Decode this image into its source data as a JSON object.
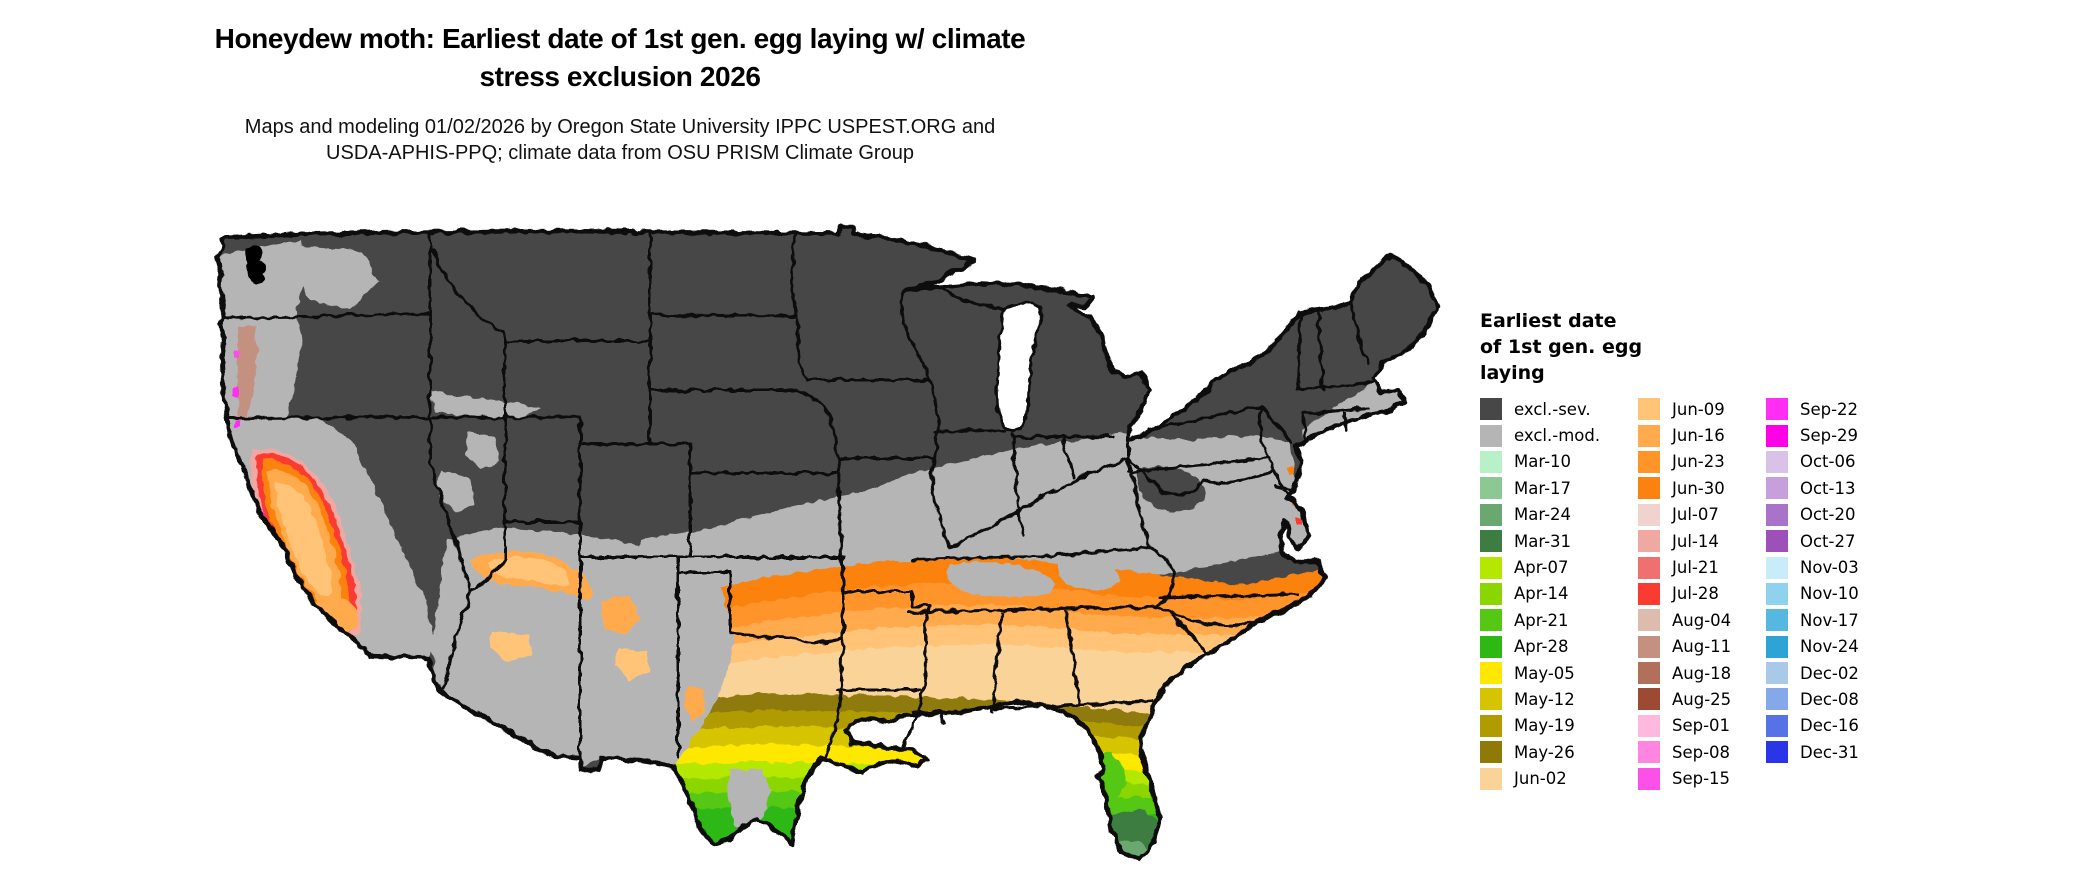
{
  "title": {
    "line1": "Honeydew moth: Earliest date of 1st gen. egg laying w/ climate",
    "line2": "stress exclusion 2026"
  },
  "subtitle": {
    "line1": "Maps and modeling 01/02/2026 by Oregon State University IPPC USPEST.ORG and",
    "line2": "USDA-APHIS-PPQ; climate data from OSU PRISM Climate Group"
  },
  "legend": {
    "title_lines": [
      "Earliest date",
      "of 1st gen. egg",
      "laying"
    ],
    "columns": [
      [
        {
          "label": "excl.-sev.",
          "color": "#474747"
        },
        {
          "label": "excl.-mod.",
          "color": "#b5b5b5"
        },
        {
          "label": "Mar-10",
          "color": "#b8f0c8"
        },
        {
          "label": "Mar-17",
          "color": "#8cc894"
        },
        {
          "label": "Mar-24",
          "color": "#6aa870"
        },
        {
          "label": "Mar-31",
          "color": "#3d7d42"
        },
        {
          "label": "Apr-07",
          "color": "#b5e800"
        },
        {
          "label": "Apr-14",
          "color": "#8cd600"
        },
        {
          "label": "Apr-21",
          "color": "#55c814"
        },
        {
          "label": "Apr-28",
          "color": "#2eb814"
        },
        {
          "label": "May-05",
          "color": "#ffe800"
        },
        {
          "label": "May-12",
          "color": "#d6c400"
        },
        {
          "label": "May-19",
          "color": "#b09c00"
        },
        {
          "label": "May-26",
          "color": "#8f7a08"
        },
        {
          "label": "Jun-02",
          "color": "#fad398"
        }
      ],
      [
        {
          "label": "Jun-09",
          "color": "#ffc478"
        },
        {
          "label": "Jun-16",
          "color": "#ffab4d"
        },
        {
          "label": "Jun-23",
          "color": "#ff9429"
        },
        {
          "label": "Jun-30",
          "color": "#fb8211"
        },
        {
          "label": "Jul-07",
          "color": "#f0d3cf"
        },
        {
          "label": "Jul-14",
          "color": "#f0a8a2"
        },
        {
          "label": "Jul-21",
          "color": "#f07070"
        },
        {
          "label": "Jul-28",
          "color": "#f93b31"
        },
        {
          "label": "Aug-04",
          "color": "#ddbcae"
        },
        {
          "label": "Aug-11",
          "color": "#c4907f"
        },
        {
          "label": "Aug-18",
          "color": "#b0705c"
        },
        {
          "label": "Aug-25",
          "color": "#9c4a33"
        },
        {
          "label": "Sep-01",
          "color": "#ffb8de"
        },
        {
          "label": "Sep-08",
          "color": "#ff85e0"
        },
        {
          "label": "Sep-15",
          "color": "#fc50e8"
        }
      ],
      [
        {
          "label": "Sep-22",
          "color": "#ff2ef5"
        },
        {
          "label": "Sep-29",
          "color": "#ff00e6"
        },
        {
          "label": "Oct-06",
          "color": "#d9c2e8"
        },
        {
          "label": "Oct-13",
          "color": "#c79fdc"
        },
        {
          "label": "Oct-20",
          "color": "#a973c9"
        },
        {
          "label": "Oct-27",
          "color": "#9c50b8"
        },
        {
          "label": "Nov-03",
          "color": "#c9ecfa"
        },
        {
          "label": "Nov-10",
          "color": "#8fd2ed"
        },
        {
          "label": "Nov-17",
          "color": "#56b8e0"
        },
        {
          "label": "Nov-24",
          "color": "#2da3d6"
        },
        {
          "label": "Dec-02",
          "color": "#aac8e8"
        },
        {
          "label": "Dec-08",
          "color": "#85a8e8"
        },
        {
          "label": "Dec-16",
          "color": "#5573e6"
        },
        {
          "label": "Dec-31",
          "color": "#2b35e8"
        }
      ]
    ]
  },
  "map": {
    "type": "choropleth-raster",
    "region": "continental United States",
    "excluded_severe_color": "#474747",
    "excluded_moderate_color": "#b5b5b5"
  }
}
